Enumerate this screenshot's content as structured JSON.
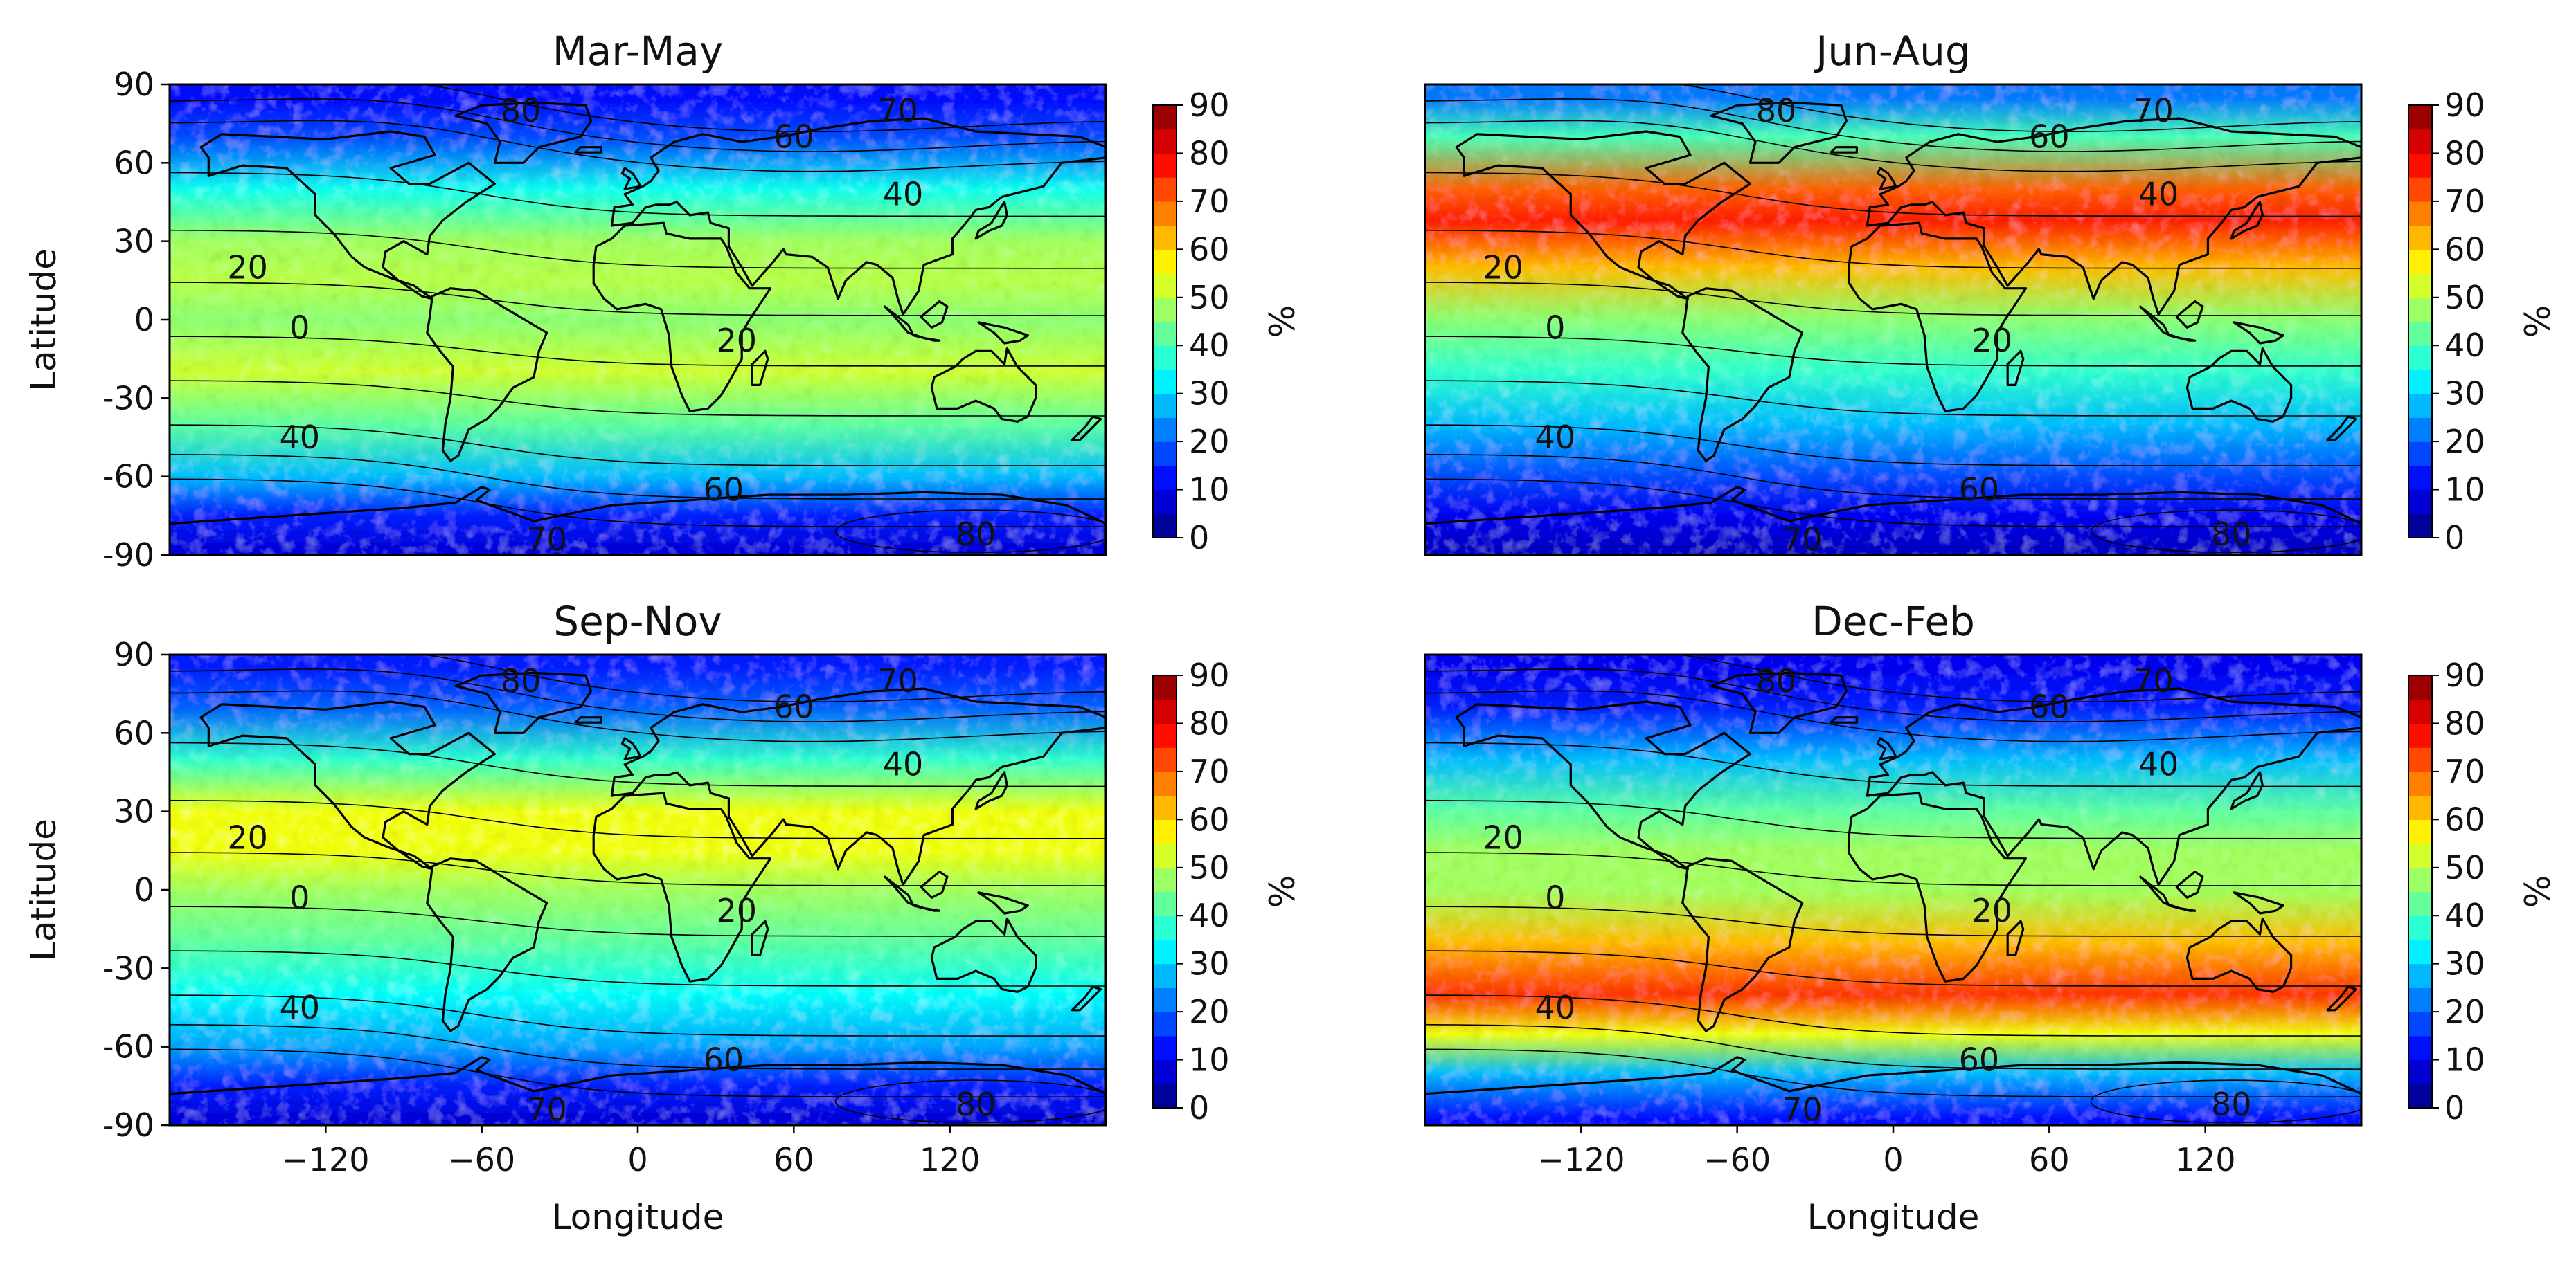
{
  "figure": {
    "colormap": "jet",
    "colorbar_unit": "%",
    "colorbar_ticks": [
      "0",
      "10",
      "20",
      "30",
      "40",
      "50",
      "60",
      "70",
      "80",
      "90"
    ],
    "lat_ticks": [
      "90",
      "60",
      "30",
      "0",
      "-30",
      "-60",
      "-90"
    ],
    "lon_ticks": [
      "−120",
      "−60",
      "0",
      "60",
      "120"
    ],
    "xlabel": "Longitude",
    "ylabel": "Latitude"
  },
  "chart_data": [
    {
      "type": "heatmap",
      "title": "Mar-May",
      "xlabel": "",
      "ylabel": "Latitude",
      "xlim": [
        -180,
        180
      ],
      "ylim": [
        -90,
        90
      ],
      "colorbar": {
        "label": "%",
        "range": [
          0,
          90
        ],
        "step": 10
      },
      "profile": [
        {
          "lat": 85,
          "v": 12
        },
        {
          "lat": 70,
          "v": 18
        },
        {
          "lat": 50,
          "v": 35
        },
        {
          "lat": 30,
          "v": 48
        },
        {
          "lat": 15,
          "v": 50
        },
        {
          "lat": 0,
          "v": 46
        },
        {
          "lat": -20,
          "v": 52
        },
        {
          "lat": -40,
          "v": 42
        },
        {
          "lat": -60,
          "v": 28
        },
        {
          "lat": -75,
          "v": 14
        },
        {
          "lat": -88,
          "v": 8
        }
      ],
      "contour_labels": [
        {
          "text": "80",
          "lon": -45,
          "lat": 80
        },
        {
          "text": "70",
          "lon": 100,
          "lat": 80
        },
        {
          "text": "60",
          "lon": 60,
          "lat": 70
        },
        {
          "text": "40",
          "lon": 102,
          "lat": 48
        },
        {
          "text": "20",
          "lon": -150,
          "lat": 20
        },
        {
          "text": "0",
          "lon": -130,
          "lat": -3
        },
        {
          "text": "20",
          "lon": 38,
          "lat": -8
        },
        {
          "text": "40",
          "lon": -130,
          "lat": -45
        },
        {
          "text": "60",
          "lon": 33,
          "lat": -65
        },
        {
          "text": "70",
          "lon": -35,
          "lat": -84
        },
        {
          "text": "80",
          "lon": 130,
          "lat": -82
        }
      ]
    },
    {
      "type": "heatmap",
      "title": "Jun-Aug",
      "xlabel": "",
      "ylabel": "",
      "xlim": [
        -180,
        180
      ],
      "ylim": [
        -90,
        90
      ],
      "colorbar": {
        "label": "%",
        "range": [
          0,
          90
        ],
        "step": 10
      },
      "profile": [
        {
          "lat": 85,
          "v": 22
        },
        {
          "lat": 70,
          "v": 40
        },
        {
          "lat": 50,
          "v": 70
        },
        {
          "lat": 38,
          "v": 76
        },
        {
          "lat": 20,
          "v": 62
        },
        {
          "lat": 0,
          "v": 46
        },
        {
          "lat": -20,
          "v": 38
        },
        {
          "lat": -40,
          "v": 28
        },
        {
          "lat": -60,
          "v": 18
        },
        {
          "lat": -75,
          "v": 10
        },
        {
          "lat": -88,
          "v": 6
        }
      ],
      "contour_labels": [
        {
          "text": "80",
          "lon": -45,
          "lat": 80
        },
        {
          "text": "70",
          "lon": 100,
          "lat": 80
        },
        {
          "text": "60",
          "lon": 60,
          "lat": 70
        },
        {
          "text": "40",
          "lon": 102,
          "lat": 48
        },
        {
          "text": "20",
          "lon": -150,
          "lat": 20
        },
        {
          "text": "0",
          "lon": -130,
          "lat": -3
        },
        {
          "text": "20",
          "lon": 38,
          "lat": -8
        },
        {
          "text": "40",
          "lon": -130,
          "lat": -45
        },
        {
          "text": "60",
          "lon": 33,
          "lat": -65
        },
        {
          "text": "70",
          "lon": -35,
          "lat": -84
        },
        {
          "text": "80",
          "lon": 130,
          "lat": -82
        }
      ]
    },
    {
      "type": "heatmap",
      "title": "Sep-Nov",
      "xlabel": "Longitude",
      "ylabel": "Latitude",
      "xlim": [
        -180,
        180
      ],
      "ylim": [
        -90,
        90
      ],
      "colorbar": {
        "label": "%",
        "range": [
          0,
          90
        ],
        "step": 10
      },
      "profile": [
        {
          "lat": 85,
          "v": 14
        },
        {
          "lat": 70,
          "v": 20
        },
        {
          "lat": 50,
          "v": 38
        },
        {
          "lat": 30,
          "v": 55
        },
        {
          "lat": 15,
          "v": 55
        },
        {
          "lat": 0,
          "v": 48
        },
        {
          "lat": -20,
          "v": 42
        },
        {
          "lat": -40,
          "v": 34
        },
        {
          "lat": -60,
          "v": 26
        },
        {
          "lat": -75,
          "v": 14
        },
        {
          "lat": -88,
          "v": 8
        }
      ],
      "contour_labels": [
        {
          "text": "80",
          "lon": -45,
          "lat": 80
        },
        {
          "text": "70",
          "lon": 100,
          "lat": 80
        },
        {
          "text": "60",
          "lon": 60,
          "lat": 70
        },
        {
          "text": "40",
          "lon": 102,
          "lat": 48
        },
        {
          "text": "20",
          "lon": -150,
          "lat": 20
        },
        {
          "text": "0",
          "lon": -130,
          "lat": -3
        },
        {
          "text": "20",
          "lon": 38,
          "lat": -8
        },
        {
          "text": "40",
          "lon": -130,
          "lat": -45
        },
        {
          "text": "60",
          "lon": 33,
          "lat": -65
        },
        {
          "text": "70",
          "lon": -35,
          "lat": -84
        },
        {
          "text": "80",
          "lon": 130,
          "lat": -82
        }
      ]
    },
    {
      "type": "heatmap",
      "title": "Dec-Feb",
      "xlabel": "Longitude",
      "ylabel": "",
      "xlim": [
        -180,
        180
      ],
      "ylim": [
        -90,
        90
      ],
      "colorbar": {
        "label": "%",
        "range": [
          0,
          90
        ],
        "step": 10
      },
      "profile": [
        {
          "lat": 85,
          "v": 10
        },
        {
          "lat": 70,
          "v": 14
        },
        {
          "lat": 50,
          "v": 28
        },
        {
          "lat": 30,
          "v": 42
        },
        {
          "lat": 15,
          "v": 48
        },
        {
          "lat": 0,
          "v": 48
        },
        {
          "lat": -20,
          "v": 62
        },
        {
          "lat": -40,
          "v": 74
        },
        {
          "lat": -55,
          "v": 55
        },
        {
          "lat": -70,
          "v": 28
        },
        {
          "lat": -88,
          "v": 12
        }
      ],
      "contour_labels": [
        {
          "text": "80",
          "lon": -45,
          "lat": 80
        },
        {
          "text": "70",
          "lon": 100,
          "lat": 80
        },
        {
          "text": "60",
          "lon": 60,
          "lat": 70
        },
        {
          "text": "40",
          "lon": 102,
          "lat": 48
        },
        {
          "text": "20",
          "lon": -150,
          "lat": 20
        },
        {
          "text": "0",
          "lon": -130,
          "lat": -3
        },
        {
          "text": "20",
          "lon": 38,
          "lat": -8
        },
        {
          "text": "40",
          "lon": -130,
          "lat": -45
        },
        {
          "text": "60",
          "lon": 33,
          "lat": -65
        },
        {
          "text": "70",
          "lon": -35,
          "lat": -84
        },
        {
          "text": "80",
          "lon": 130,
          "lat": -82
        }
      ]
    }
  ]
}
